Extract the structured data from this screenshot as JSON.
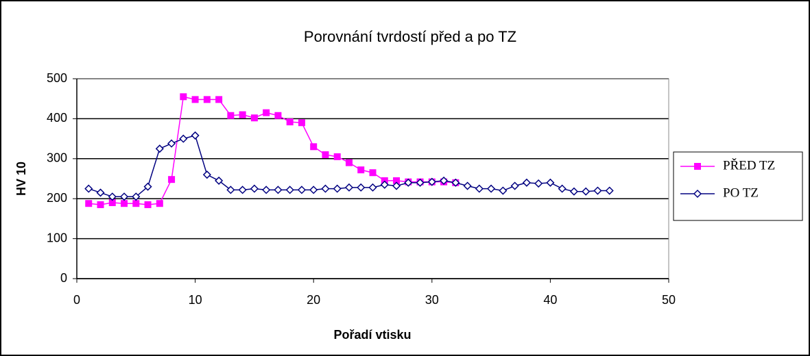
{
  "chart_data": {
    "type": "line",
    "title": "Porovnání tvrdostí před a po TZ",
    "x_label": "Pořadí vtisku",
    "y_label": "HV 10",
    "xlim": [
      0,
      50
    ],
    "xticks": [
      0,
      10,
      20,
      30,
      40,
      50
    ],
    "ylim": [
      0,
      500
    ],
    "yticks": [
      0,
      100,
      200,
      300,
      400,
      500
    ],
    "grid": true,
    "legend": "right",
    "series": [
      {
        "name": "PŘED TZ",
        "color": "#ff00ff",
        "marker": "square",
        "x": [
          1,
          2,
          3,
          4,
          5,
          6,
          7,
          8,
          9,
          10,
          11,
          12,
          13,
          14,
          15,
          16,
          17,
          18,
          19,
          20,
          21,
          22,
          23,
          24,
          25,
          26,
          27,
          28,
          29,
          30,
          31,
          32
        ],
        "values": [
          188,
          185,
          190,
          188,
          188,
          185,
          188,
          248,
          455,
          448,
          448,
          448,
          408,
          410,
          402,
          415,
          408,
          392,
          390,
          330,
          310,
          305,
          290,
          272,
          265,
          245,
          245,
          242,
          242,
          242,
          242,
          240
        ]
      },
      {
        "name": "PO TZ",
        "color": "#000080",
        "marker": "diamond",
        "x": [
          1,
          2,
          3,
          4,
          5,
          6,
          7,
          8,
          9,
          10,
          11,
          12,
          13,
          14,
          15,
          16,
          17,
          18,
          19,
          20,
          21,
          22,
          23,
          24,
          25,
          26,
          27,
          28,
          29,
          30,
          31,
          32,
          33,
          34,
          35,
          36,
          37,
          38,
          39,
          40,
          41,
          42,
          43,
          44,
          45
        ],
        "values": [
          225,
          215,
          205,
          205,
          205,
          230,
          325,
          338,
          350,
          358,
          260,
          245,
          222,
          222,
          225,
          222,
          222,
          222,
          222,
          222,
          225,
          225,
          228,
          228,
          228,
          235,
          232,
          240,
          240,
          242,
          245,
          240,
          232,
          225,
          225,
          220,
          232,
          240,
          238,
          240,
          225,
          218,
          218,
          220,
          220
        ]
      }
    ]
  }
}
